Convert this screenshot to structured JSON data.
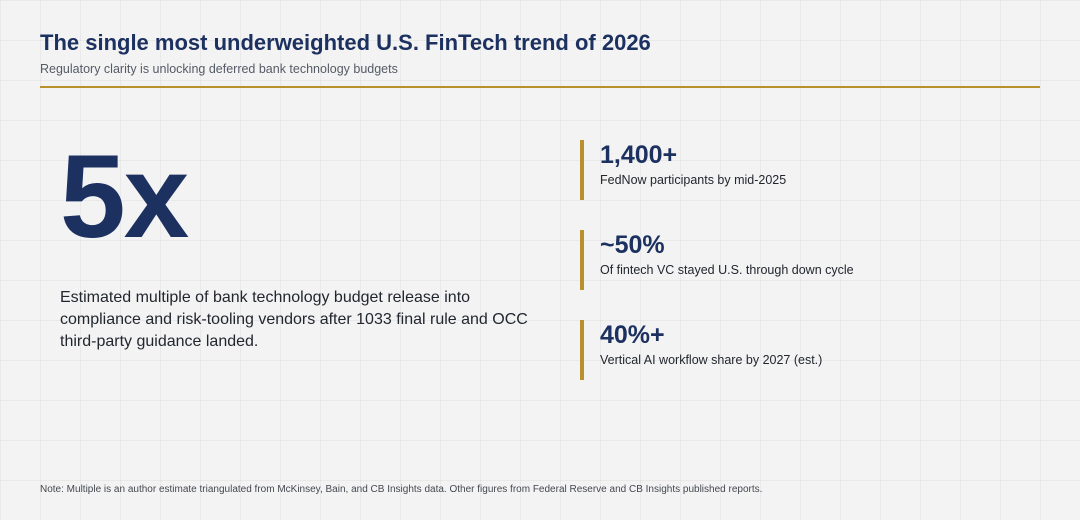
{
  "header": {
    "title": "The single most underweighted U.S. FinTech trend of 2026",
    "subtitle": "Regulatory clarity is unlocking deferred bank technology budgets"
  },
  "hero": {
    "value": "5x",
    "description": "Estimated multiple of bank technology budget release into compliance and risk-tooling vendors after 1033 final rule and OCC third-party guidance landed."
  },
  "stats": [
    {
      "value": "1,400+",
      "label": "FedNow participants by mid-2025"
    },
    {
      "value": "~50%",
      "label": "Of fintech VC stayed U.S. through down cycle"
    },
    {
      "value": "40%+",
      "label": "Vertical AI workflow share by 2027 (est.)"
    }
  ],
  "footer": {
    "note": "Note: Multiple is an author estimate triangulated from McKinsey, Bain, and CB Insights data. Other figures from Federal Reserve and CB Insights published reports."
  },
  "colors": {
    "accent": "#b8912a",
    "navy": "#1c3160",
    "background": "#f3f3f3"
  }
}
